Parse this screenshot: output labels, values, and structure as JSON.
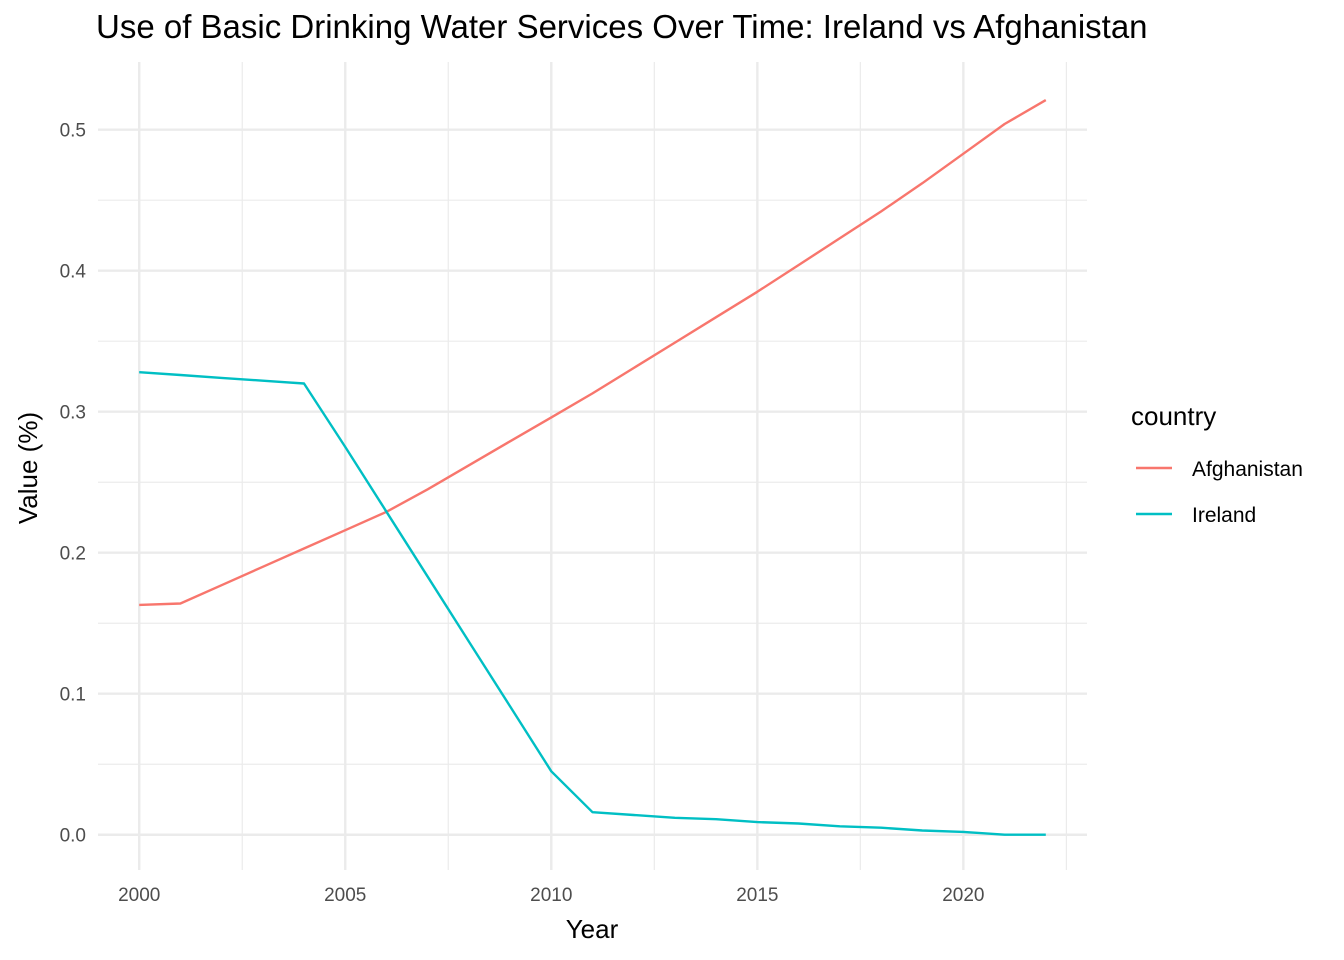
{
  "chart_data": {
    "type": "line",
    "title": "Use of Basic Drinking Water Services Over Time: Ireland vs Afghanistan",
    "xlabel": "Year",
    "ylabel": "Value (%)",
    "xlim": [
      1999.0,
      2023.0
    ],
    "ylim": [
      -0.025,
      0.548
    ],
    "x_ticks": [
      2000,
      2005,
      2010,
      2015,
      2020
    ],
    "x_minor": [
      2002.5,
      2007.5,
      2012.5,
      2017.5,
      2022.5
    ],
    "y_ticks": [
      0.0,
      0.1,
      0.2,
      0.3,
      0.4,
      0.5
    ],
    "y_tick_labels": [
      "0.0",
      "0.1",
      "0.2",
      "0.3",
      "0.4",
      "0.5"
    ],
    "y_minor": [
      0.05,
      0.15,
      0.25,
      0.35,
      0.45
    ],
    "grid": true,
    "legend": {
      "title": "country",
      "position": "right"
    },
    "series": [
      {
        "name": "Afghanistan",
        "color": "#F8766D",
        "x": [
          2000,
          2001,
          2002,
          2003,
          2004,
          2005,
          2006,
          2007,
          2008,
          2009,
          2010,
          2011,
          2012,
          2013,
          2014,
          2015,
          2016,
          2017,
          2018,
          2019,
          2020,
          2021,
          2022
        ],
        "values": [
          0.163,
          0.164,
          0.177,
          0.19,
          0.203,
          0.216,
          0.229,
          0.245,
          0.262,
          0.279,
          0.296,
          0.313,
          0.331,
          0.349,
          0.367,
          0.385,
          0.404,
          0.423,
          0.442,
          0.462,
          0.483,
          0.504,
          0.521
        ]
      },
      {
        "name": "Ireland",
        "color": "#00BFC4",
        "x": [
          2000,
          2001,
          2002,
          2003,
          2004,
          2005,
          2006,
          2007,
          2008,
          2009,
          2010,
          2011,
          2012,
          2013,
          2014,
          2015,
          2016,
          2017,
          2018,
          2019,
          2020,
          2021,
          2022
        ],
        "values": [
          0.328,
          0.326,
          0.324,
          0.322,
          0.32,
          0.275,
          0.229,
          0.183,
          0.137,
          0.091,
          0.045,
          0.016,
          0.014,
          0.012,
          0.011,
          0.009,
          0.008,
          0.006,
          0.005,
          0.003,
          0.002,
          0.0,
          0.0
        ]
      }
    ]
  }
}
